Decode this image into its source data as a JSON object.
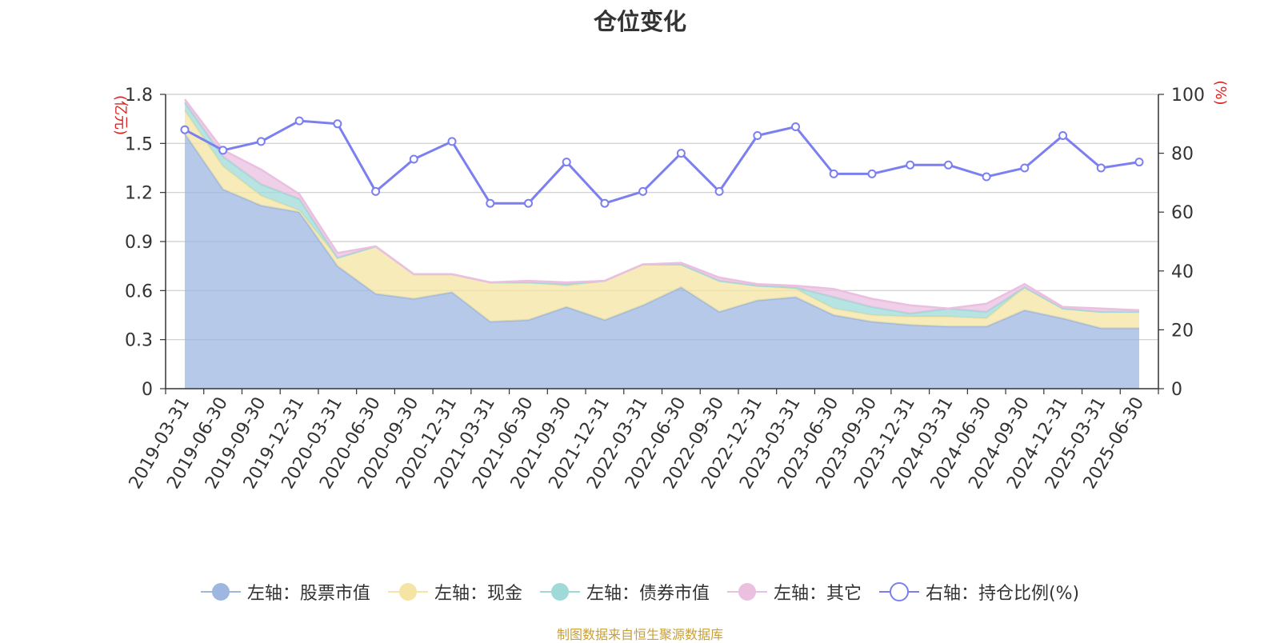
{
  "chart_data": {
    "type": "area",
    "title": "仓位变化",
    "categories": [
      "2019-03-31",
      "2019-06-30",
      "2019-09-30",
      "2019-12-31",
      "2020-03-31",
      "2020-06-30",
      "2020-09-30",
      "2020-12-31",
      "2021-03-31",
      "2021-06-30",
      "2021-09-30",
      "2021-12-31",
      "2022-03-31",
      "2022-06-30",
      "2022-09-30",
      "2022-12-31",
      "2023-03-31",
      "2023-06-30",
      "2023-09-30",
      "2023-12-31",
      "2024-03-31",
      "2024-06-30",
      "2024-09-30",
      "2024-12-31",
      "2025-03-31",
      "2025-06-30"
    ],
    "left_axis": {
      "unit": "(亿元)",
      "ylim": [
        0,
        1.8
      ],
      "ticks": [
        "0",
        "0.3",
        "0.6",
        "0.9",
        "1.2",
        "1.5",
        "1.8"
      ]
    },
    "right_axis": {
      "unit": "(%)",
      "ylim": [
        0,
        100
      ],
      "ticks": [
        "0",
        "20",
        "40",
        "60",
        "80",
        "100"
      ]
    },
    "series": [
      {
        "name": "左轴：股票市值",
        "axis": "left",
        "stacked": true,
        "color": "#9db7e0",
        "values": [
          1.56,
          1.22,
          1.12,
          1.08,
          0.75,
          0.58,
          0.55,
          0.59,
          0.41,
          0.42,
          0.5,
          0.42,
          0.51,
          0.62,
          0.47,
          0.54,
          0.56,
          0.45,
          0.41,
          0.39,
          0.38,
          0.38,
          0.48,
          0.43,
          0.37,
          0.37
        ]
      },
      {
        "name": "左轴：现金",
        "axis": "left",
        "stacked": true,
        "color": "#f5e4a3",
        "values": [
          0.14,
          0.14,
          0.06,
          0.01,
          0.05,
          0.29,
          0.15,
          0.11,
          0.24,
          0.23,
          0.13,
          0.24,
          0.25,
          0.14,
          0.19,
          0.09,
          0.05,
          0.04,
          0.04,
          0.05,
          0.06,
          0.05,
          0.14,
          0.06,
          0.1,
          0.1
        ]
      },
      {
        "name": "左轴：债券市值",
        "axis": "left",
        "stacked": true,
        "color": "#9fd9d8",
        "values": [
          0.05,
          0.06,
          0.07,
          0.07,
          0.0,
          0.0,
          0.0,
          0.0,
          0.0,
          0.0,
          0.01,
          0.0,
          0.0,
          0.0,
          0.0,
          0.0,
          0.01,
          0.07,
          0.05,
          0.02,
          0.05,
          0.04,
          0.0,
          0.0,
          0.0,
          0.0
        ]
      },
      {
        "name": "左轴：其它",
        "axis": "left",
        "stacked": true,
        "color": "#ebbfe0",
        "values": [
          0.02,
          0.04,
          0.09,
          0.03,
          0.03,
          0.0,
          0.0,
          0.0,
          0.0,
          0.01,
          0.01,
          0.0,
          0.0,
          0.01,
          0.02,
          0.01,
          0.01,
          0.05,
          0.05,
          0.05,
          0.0,
          0.05,
          0.02,
          0.01,
          0.02,
          0.01
        ]
      },
      {
        "name": "右轴：持仓比例(%)",
        "axis": "right",
        "type": "line",
        "color": "#7b7ff0",
        "values": [
          88,
          81,
          84,
          91,
          90,
          67,
          78,
          84,
          63,
          63,
          77,
          63,
          67,
          80,
          67,
          86,
          89,
          73,
          73,
          76,
          76,
          72,
          75,
          86,
          75,
          77
        ]
      }
    ],
    "grid": true,
    "legend_position": "bottom"
  },
  "source_note": "制图数据来自恒生聚源数据库"
}
